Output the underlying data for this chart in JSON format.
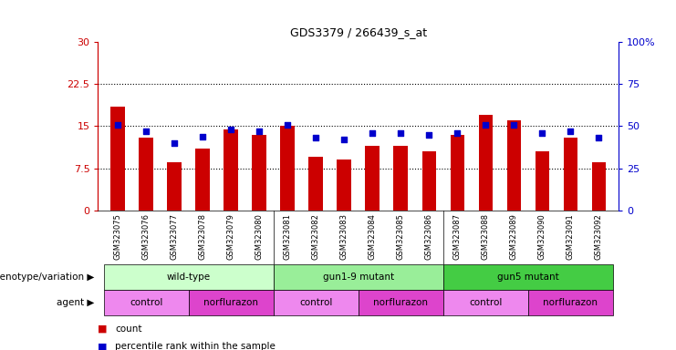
{
  "title": "GDS3379 / 266439_s_at",
  "samples": [
    "GSM323075",
    "GSM323076",
    "GSM323077",
    "GSM323078",
    "GSM323079",
    "GSM323080",
    "GSM323081",
    "GSM323082",
    "GSM323083",
    "GSM323084",
    "GSM323085",
    "GSM323086",
    "GSM323087",
    "GSM323088",
    "GSM323089",
    "GSM323090",
    "GSM323091",
    "GSM323092"
  ],
  "counts": [
    18.5,
    13.0,
    8.5,
    11.0,
    14.5,
    13.5,
    15.0,
    9.5,
    9.0,
    11.5,
    11.5,
    10.5,
    13.5,
    17.0,
    16.0,
    10.5,
    13.0,
    8.5
  ],
  "percentile_ranks": [
    51,
    47,
    40,
    44,
    48,
    47,
    51,
    43,
    42,
    46,
    46,
    45,
    46,
    51,
    51,
    46,
    47,
    43
  ],
  "bar_color": "#cc0000",
  "dot_color": "#0000cc",
  "ylim_left": [
    0,
    30
  ],
  "ylim_right": [
    0,
    100
  ],
  "yticks_left": [
    0,
    7.5,
    15,
    22.5,
    30
  ],
  "yticks_right": [
    0,
    25,
    50,
    75,
    100
  ],
  "ytick_labels_left": [
    "0",
    "7.5",
    "15",
    "22.5",
    "30"
  ],
  "ytick_labels_right": [
    "0",
    "25",
    "50",
    "75",
    "100%"
  ],
  "hlines": [
    7.5,
    15.0,
    22.5
  ],
  "groups": [
    {
      "label": "wild-type",
      "start": 0,
      "end": 6,
      "color": "#ccffcc"
    },
    {
      "label": "gun1-9 mutant",
      "start": 6,
      "end": 12,
      "color": "#99ee99"
    },
    {
      "label": "gun5 mutant",
      "start": 12,
      "end": 18,
      "color": "#44cc44"
    }
  ],
  "agents": [
    {
      "label": "control",
      "start": 0,
      "end": 3,
      "color": "#ee88ee"
    },
    {
      "label": "norflurazon",
      "start": 3,
      "end": 6,
      "color": "#dd44cc"
    },
    {
      "label": "control",
      "start": 6,
      "end": 9,
      "color": "#ee88ee"
    },
    {
      "label": "norflurazon",
      "start": 9,
      "end": 12,
      "color": "#dd44cc"
    },
    {
      "label": "control",
      "start": 12,
      "end": 15,
      "color": "#ee88ee"
    },
    {
      "label": "norflurazon",
      "start": 15,
      "end": 18,
      "color": "#dd44cc"
    }
  ],
  "legend_count_color": "#cc0000",
  "legend_dot_color": "#0000cc",
  "plot_bg": "#ffffff",
  "xtick_bg": "#d8d8d8"
}
